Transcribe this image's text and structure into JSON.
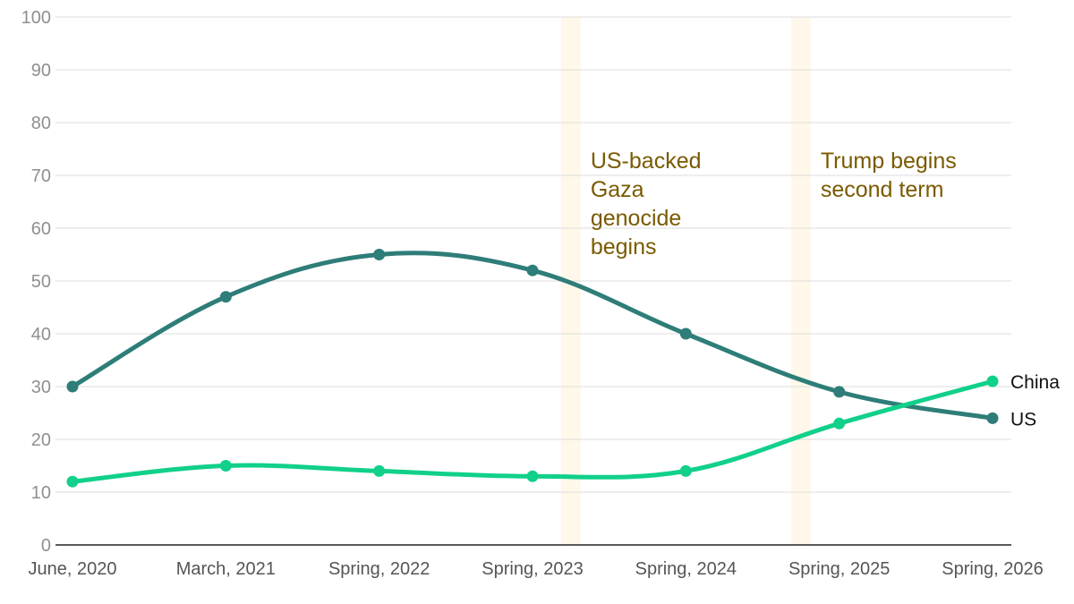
{
  "chart_data": {
    "type": "line",
    "title": "",
    "xlabel": "",
    "ylabel": "",
    "ylim": [
      0,
      100
    ],
    "yticks": [
      0,
      10,
      20,
      30,
      40,
      50,
      60,
      70,
      80,
      90,
      100
    ],
    "grid": true,
    "categories": [
      "June, 2020",
      "March, 2021",
      "Spring, 2022",
      "Spring, 2023",
      "Spring, 2024",
      "Spring, 2025",
      "Spring, 2026"
    ],
    "series": [
      {
        "name": "US",
        "color": "#2e7d78",
        "values": [
          30,
          47,
          55,
          52,
          40,
          29,
          24
        ]
      },
      {
        "name": "China",
        "color": "#11d08a",
        "values": [
          12,
          15,
          14,
          13,
          14,
          23,
          31
        ]
      }
    ],
    "annotations": [
      {
        "lines": [
          "US-backed",
          "Gaza",
          "genocide",
          "begins"
        ],
        "band_at": 3.25
      },
      {
        "lines": [
          "Trump begins",
          "second term"
        ],
        "band_at": 4.75
      }
    ]
  }
}
